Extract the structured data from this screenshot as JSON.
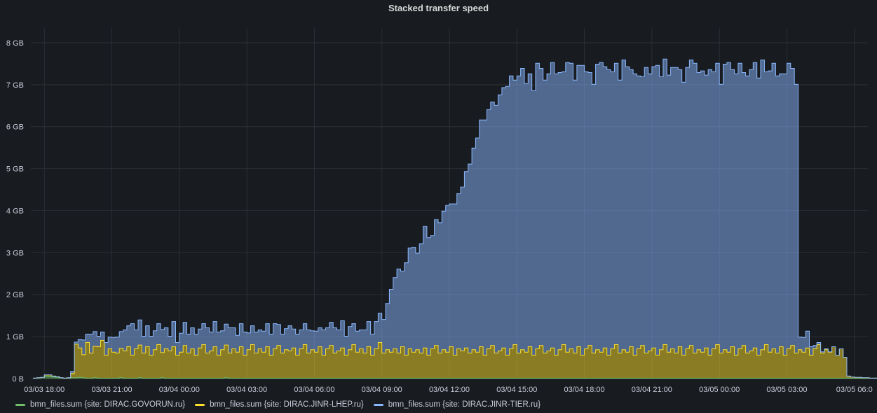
{
  "panel": {
    "title": "Stacked transfer speed"
  },
  "colors": {
    "green": "#73bf69",
    "yellow": "#fade2a",
    "blue": "#8ab8ff",
    "grid": "#2c2f35"
  },
  "chart_data": {
    "type": "area",
    "stacked": true,
    "title": "Stacked transfer speed",
    "y_unit": "GB",
    "ylim": [
      0,
      8.35
    ],
    "y_ticks": [
      "0 B",
      "1 GB",
      "2 GB",
      "3 GB",
      "4 GB",
      "5 GB",
      "6 GB",
      "7 GB",
      "8 GB"
    ],
    "x_ticks": [
      "03/03 18:00",
      "03/03 21:00",
      "03/04 00:00",
      "03/04 03:00",
      "03/04 06:00",
      "03/04 09:00",
      "03/04 12:00",
      "03/04 15:00",
      "03/04 18:00",
      "03/04 21:00",
      "03/05 00:00",
      "03/05 03:00",
      "03/05 06:0"
    ],
    "xlim_hours": [
      17.4,
      54.6
    ],
    "interval_minutes": 10,
    "grid": true,
    "legend_placement": "bottom-left",
    "series": [
      {
        "name": "bmn_files.sum {site: DIRAC.GOVORUN.ru}",
        "color": "#73bf69",
        "start_hour": 17.5,
        "values": [
          0.01,
          0.02,
          0.03,
          0.06,
          0.05,
          0.04,
          0.03,
          0.02,
          0.01,
          0.01,
          0.02,
          0.02,
          0.03,
          0.02,
          0.01,
          0.01,
          0.02,
          0.01,
          0.01,
          0.01,
          0.01,
          0.01,
          0.01,
          0.02,
          0.01,
          0.01,
          0.01,
          0.01,
          0.02,
          0.01,
          0.01,
          0.01,
          0.01,
          0.01,
          0.02,
          0.01,
          0.01,
          0.01,
          0.01,
          0.01,
          0.01,
          0.01,
          0.01,
          0.01,
          0.01,
          0.01,
          0.01,
          0.01,
          0.01,
          0.01,
          0.01,
          0.02,
          0.01,
          0.01,
          0.01,
          0.01,
          0.01,
          0.01,
          0.01,
          0.01,
          0.01,
          0.01,
          0.01,
          0.01,
          0.01,
          0.01,
          0.01,
          0.01,
          0.01,
          0.01,
          0.01,
          0.01,
          0.01,
          0.01,
          0.01,
          0.01,
          0.01,
          0.01,
          0.01,
          0.01,
          0.01,
          0.01,
          0.01,
          0.01,
          0.01,
          0.01,
          0.01,
          0.01,
          0.01,
          0.01,
          0.01,
          0.01,
          0.01,
          0.01,
          0.01,
          0.01,
          0.01,
          0.01,
          0.01,
          0.01,
          0.01,
          0.01,
          0.01,
          0.01,
          0.01,
          0.01,
          0.01,
          0.01,
          0.01,
          0.01,
          0.01,
          0.01,
          0.01,
          0.01,
          0.01,
          0.01,
          0.01,
          0.01,
          0.01,
          0.01,
          0.01,
          0.01,
          0.01,
          0.01,
          0.01,
          0.01,
          0.01,
          0.01,
          0.01,
          0.01,
          0.01,
          0.01,
          0.01,
          0.01,
          0.01,
          0.01,
          0.01,
          0.01,
          0.01,
          0.01,
          0.01,
          0.01,
          0.01,
          0.01,
          0.01,
          0.01,
          0.01,
          0.01,
          0.01,
          0.01,
          0.01,
          0.01,
          0.01,
          0.01,
          0.01,
          0.01,
          0.01,
          0.01,
          0.01,
          0.01,
          0.01,
          0.01,
          0.01,
          0.01,
          0.01,
          0.01,
          0.01,
          0.01,
          0.01,
          0.01,
          0.01,
          0.01,
          0.01,
          0.01,
          0.01,
          0.01,
          0.01,
          0.01,
          0.01,
          0.01,
          0.01,
          0.01,
          0.01,
          0.01,
          0.01,
          0.01,
          0.01,
          0.01,
          0.01,
          0.01,
          0.01,
          0.01,
          0.01,
          0.01,
          0.01,
          0.01,
          0.01,
          0.01,
          0.01,
          0.01,
          0.01,
          0.01,
          0.01,
          0.01,
          0.01,
          0.01,
          0.01,
          0.01,
          0.01,
          0.01,
          0.01,
          0.01,
          0.01,
          0.01,
          0.01,
          0.01,
          0.01,
          0.01,
          0.01,
          0.01,
          0.01,
          0.01,
          0.01,
          0.01,
          0.01,
          0.01,
          0.01
        ]
      },
      {
        "name": "bmn_files.sum {site: DIRAC.JINR-LHEP.ru}",
        "color": "#fade2a",
        "start_hour": 17.5,
        "values": [
          0.0,
          0.0,
          0.0,
          0.03,
          0.04,
          0.02,
          0.02,
          0.0,
          0.0,
          0.01,
          0.1,
          0.8,
          0.7,
          0.55,
          0.85,
          0.6,
          0.75,
          0.75,
          0.9,
          0.55,
          0.7,
          0.62,
          0.6,
          0.7,
          0.65,
          0.75,
          0.55,
          0.7,
          0.78,
          0.6,
          0.75,
          0.55,
          0.68,
          0.8,
          0.6,
          0.7,
          0.65,
          0.75,
          0.55,
          0.62,
          0.78,
          0.6,
          0.7,
          0.55,
          0.72,
          0.8,
          0.6,
          0.65,
          0.75,
          0.55,
          0.68,
          0.78,
          0.6,
          0.7,
          0.62,
          0.75,
          0.55,
          0.68,
          0.8,
          0.6,
          0.7,
          0.62,
          0.75,
          0.55,
          0.7,
          0.78,
          0.6,
          0.68,
          0.65,
          0.72,
          0.55,
          0.7,
          0.8,
          0.6,
          0.68,
          0.62,
          0.75,
          0.55,
          0.7,
          0.78,
          0.6,
          0.65,
          0.72,
          0.55,
          0.68,
          0.8,
          0.62,
          0.7,
          0.6,
          0.75,
          0.55,
          0.7,
          0.85,
          0.6,
          0.68,
          0.62,
          0.7,
          0.6,
          0.75,
          0.55,
          0.7,
          0.62,
          0.68,
          0.6,
          0.72,
          0.55,
          0.7,
          0.78,
          0.6,
          0.68,
          0.62,
          0.75,
          0.55,
          0.7,
          0.65,
          0.72,
          0.6,
          0.68,
          0.62,
          0.75,
          0.55,
          0.7,
          0.78,
          0.6,
          0.65,
          0.72,
          0.55,
          0.7,
          0.8,
          0.6,
          0.68,
          0.62,
          0.75,
          0.55,
          0.7,
          0.78,
          0.6,
          0.65,
          0.72,
          0.55,
          0.68,
          0.8,
          0.62,
          0.7,
          0.6,
          0.75,
          0.55,
          0.7,
          0.78,
          0.6,
          0.68,
          0.62,
          0.72,
          0.55,
          0.7,
          0.8,
          0.6,
          0.68,
          0.62,
          0.75,
          0.55,
          0.7,
          0.78,
          0.6,
          0.65,
          0.72,
          0.55,
          0.68,
          0.8,
          0.62,
          0.7,
          0.6,
          0.75,
          0.55,
          0.7,
          0.78,
          0.6,
          0.68,
          0.62,
          0.72,
          0.55,
          0.7,
          0.8,
          0.6,
          0.68,
          0.62,
          0.75,
          0.55,
          0.7,
          0.78,
          0.6,
          0.65,
          0.72,
          0.55,
          0.68,
          0.8,
          0.62,
          0.7,
          0.6,
          0.75,
          0.55,
          0.7,
          0.78,
          0.6,
          0.68,
          0.62,
          0.72,
          0.55,
          0.7,
          0.8,
          0.6,
          0.68,
          0.62,
          0.75,
          0.55,
          0.7,
          0.5,
          0.05,
          0.03,
          0.02,
          0.02,
          0.01,
          0.01,
          0.0,
          0.0
        ]
      },
      {
        "name": "bmn_files.sum {site: DIRAC.JINR-TIER.ru}",
        "color": "#8ab8ff",
        "start_hour": 17.5,
        "values": [
          0.0,
          0.0,
          0.0,
          0.0,
          0.0,
          0.0,
          0.0,
          0.0,
          0.0,
          0.0,
          0.05,
          0.05,
          0.2,
          0.35,
          0.2,
          0.45,
          0.35,
          0.25,
          0.2,
          0.3,
          0.28,
          0.35,
          0.38,
          0.4,
          0.5,
          0.5,
          0.75,
          0.45,
          0.6,
          0.4,
          0.5,
          0.45,
          0.45,
          0.5,
          0.55,
          0.5,
          0.35,
          0.6,
          0.3,
          0.45,
          0.55,
          0.45,
          0.5,
          0.5,
          0.45,
          0.5,
          0.6,
          0.45,
          0.6,
          0.55,
          0.45,
          0.5,
          0.6,
          0.5,
          0.4,
          0.55,
          0.55,
          0.4,
          0.45,
          0.5,
          0.45,
          0.5,
          0.55,
          0.5,
          0.6,
          0.5,
          0.45,
          0.5,
          0.6,
          0.45,
          0.5,
          0.45,
          0.5,
          0.55,
          0.45,
          0.5,
          0.45,
          0.6,
          0.5,
          0.55,
          0.6,
          0.5,
          0.65,
          0.45,
          0.55,
          0.5,
          0.5,
          0.45,
          0.55,
          0.6,
          0.5,
          0.65,
          0.7,
          0.8,
          1.1,
          1.5,
          1.7,
          2.0,
          1.8,
          2.2,
          2.4,
          2.5,
          2.3,
          2.6,
          2.9,
          2.8,
          2.7,
          3.0,
          3.1,
          3.3,
          3.5,
          3.4,
          3.6,
          3.7,
          3.9,
          4.2,
          4.5,
          4.8,
          5.1,
          5.4,
          5.6,
          5.7,
          5.8,
          5.9,
          6.1,
          6.2,
          6.4,
          6.5,
          6.3,
          6.6,
          6.7,
          6.4,
          6.5,
          6.3,
          6.8,
          6.6,
          6.5,
          6.6,
          6.8,
          6.7,
          6.6,
          6.5,
          6.9,
          6.8,
          6.5,
          6.7,
          6.9,
          6.6,
          6.5,
          6.4,
          6.8,
          6.9,
          6.7,
          6.8,
          6.6,
          6.7,
          6.5,
          6.9,
          6.8,
          6.6,
          6.7,
          6.5,
          6.4,
          6.8,
          6.6,
          6.7,
          6.9,
          6.5,
          6.8,
          6.6,
          6.7,
          6.8,
          6.6,
          6.5,
          6.7,
          6.8,
          6.9,
          6.6,
          6.7,
          6.5,
          6.8,
          6.6,
          6.7,
          6.4,
          6.8,
          6.9,
          6.6,
          6.7,
          6.8,
          6.5,
          6.6,
          6.7,
          6.8,
          6.6,
          6.9,
          6.5,
          6.7,
          6.8,
          6.6,
          6.5,
          6.7,
          6.8,
          6.6,
          6.4,
          0.3,
          0.35,
          0.4,
          0.2,
          0.08,
          0.05,
          0.03,
          0.02,
          0.01
        ]
      }
    ]
  },
  "legend": [
    {
      "label": "bmn_files.sum {site: DIRAC.GOVORUN.ru}",
      "color": "#73bf69"
    },
    {
      "label": "bmn_files.sum {site: DIRAC.JINR-LHEP.ru}",
      "color": "#fade2a"
    },
    {
      "label": "bmn_files.sum {site: DIRAC.JINR-TIER.ru}",
      "color": "#8ab8ff"
    }
  ]
}
